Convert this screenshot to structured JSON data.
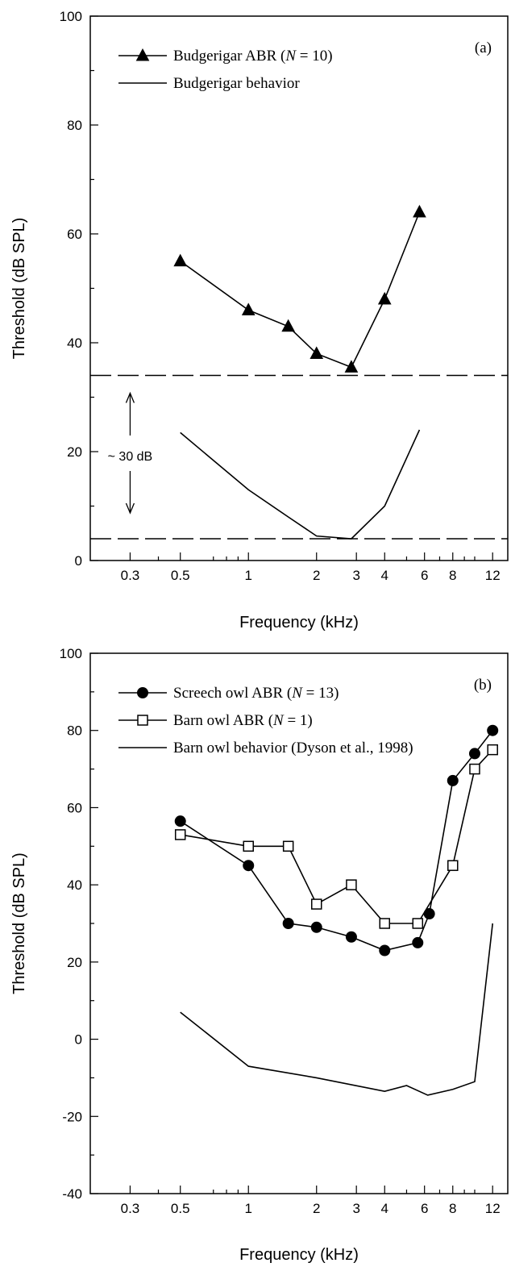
{
  "chart_data": [
    {
      "type": "line",
      "panel_label": "(a)",
      "xlabel": "Frequency (kHz)",
      "ylabel": "Threshold (dB SPL)",
      "xscale": "log",
      "xlim": [
        0.2,
        14
      ],
      "ylim": [
        0,
        100
      ],
      "xticks": [
        0.3,
        0.5,
        1,
        2,
        3,
        4,
        6,
        8,
        12
      ],
      "xtick_labels": [
        "0.3",
        "0.5",
        "1",
        "2",
        "3",
        "4",
        "6",
        "8",
        "12"
      ],
      "yticks": [
        0,
        20,
        40,
        60,
        80,
        100
      ],
      "ytick_labels": [
        "0",
        "20",
        "40",
        "60",
        "80",
        "100"
      ],
      "legend_position": "top-left",
      "series": [
        {
          "name_parts": [
            "Budgerigar ABR (",
            "N",
            " = 10)"
          ],
          "marker": "triangle-filled",
          "line": "solid",
          "x": [
            0.5,
            1,
            1.5,
            2,
            2.85,
            4,
            5.7
          ],
          "y": [
            55,
            46,
            43,
            38,
            35.5,
            48,
            64
          ]
        },
        {
          "name": "Budgerigar behavior",
          "marker": "none",
          "line": "solid",
          "x": [
            0.5,
            1,
            1.5,
            2,
            2.85,
            4,
            5.7
          ],
          "y": [
            23.5,
            13,
            8,
            4.5,
            4,
            10,
            24
          ]
        }
      ],
      "reference_lines": [
        {
          "style": "dashed",
          "y": 34
        },
        {
          "style": "dashed",
          "y": 4
        }
      ],
      "annotations": [
        {
          "text": "~ 30 dB",
          "x": 0.3,
          "y": 20
        }
      ]
    },
    {
      "type": "line",
      "panel_label": "(b)",
      "xlabel": "Frequency (kHz)",
      "ylabel": "Threshold (dB SPL)",
      "xscale": "log",
      "xlim": [
        0.2,
        14
      ],
      "ylim": [
        -40,
        100
      ],
      "xticks": [
        0.3,
        0.5,
        1,
        2,
        3,
        4,
        6,
        8,
        12
      ],
      "xtick_labels": [
        "0.3",
        "0.5",
        "1",
        "2",
        "3",
        "4",
        "6",
        "8",
        "12"
      ],
      "yticks": [
        -40,
        -20,
        0,
        20,
        40,
        60,
        80,
        100
      ],
      "ytick_labels": [
        "-40",
        "-20",
        "0",
        "20",
        "40",
        "60",
        "80",
        "100"
      ],
      "legend_position": "top-left",
      "series": [
        {
          "name_parts": [
            "Screech owl ABR (",
            "N",
            " = 13)"
          ],
          "marker": "circle-filled",
          "line": "solid",
          "x": [
            0.5,
            1,
            1.5,
            2,
            2.85,
            4,
            5.6,
            6.3,
            8,
            10,
            12
          ],
          "y": [
            56.5,
            45,
            30,
            29,
            26.5,
            23,
            25,
            32.5,
            67,
            74,
            80
          ]
        },
        {
          "name_parts": [
            "Barn owl ABR (",
            "N",
            " = 1)"
          ],
          "marker": "square-open",
          "line": "solid",
          "x": [
            0.5,
            1,
            1.5,
            2,
            2.85,
            4,
            5.6,
            8,
            10,
            12
          ],
          "y": [
            53,
            50,
            50,
            35,
            40,
            30,
            30,
            45,
            70,
            75
          ]
        },
        {
          "name": "Barn owl behavior (Dyson et al., 1998)",
          "marker": "none",
          "line": "solid",
          "x": [
            0.5,
            1,
            2,
            4,
            5,
            6.2,
            8,
            10,
            12
          ],
          "y": [
            7,
            -7,
            -10,
            -13.5,
            -12,
            -14.5,
            -13,
            -11,
            30
          ]
        }
      ]
    }
  ]
}
